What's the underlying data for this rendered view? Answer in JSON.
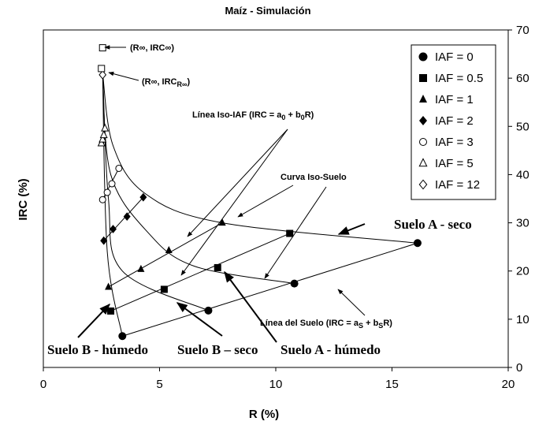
{
  "chart_data": {
    "type": "scatter",
    "title": "Maíz - Simulación",
    "xlabel": "R (%)",
    "ylabel": "IRC (%)",
    "xlim": [
      0,
      20
    ],
    "ylim": [
      0,
      70
    ],
    "x_ticks": [
      "0",
      "5",
      "10",
      "15",
      "20"
    ],
    "y_ticks": [
      "0",
      "10",
      "20",
      "30",
      "40",
      "50",
      "60",
      "70"
    ],
    "grid": false,
    "legend_position": "top-right",
    "series": [
      {
        "name": "IAF = 0",
        "marker": "filled-circle",
        "points": [
          [
            3.4,
            6.5
          ],
          [
            7.1,
            11.8
          ],
          [
            10.8,
            17.4
          ],
          [
            16.1,
            25.8
          ]
        ]
      },
      {
        "name": "IAF = 0.5",
        "marker": "filled-square",
        "points": [
          [
            2.9,
            11.7
          ],
          [
            5.2,
            16.2
          ],
          [
            7.5,
            20.7
          ],
          [
            10.6,
            27.8
          ]
        ]
      },
      {
        "name": "IAF = 1",
        "marker": "filled-triangle",
        "points": [
          [
            2.8,
            16.7
          ],
          [
            4.2,
            20.4
          ],
          [
            5.4,
            24.3
          ],
          [
            7.7,
            30.0
          ]
        ]
      },
      {
        "name": "IAF = 2",
        "marker": "filled-diamond",
        "points": [
          [
            2.6,
            26.3
          ],
          [
            3.0,
            28.7
          ],
          [
            3.6,
            31.3
          ],
          [
            4.3,
            35.3
          ]
        ]
      },
      {
        "name": "IAF = 3",
        "marker": "open-circle",
        "points": [
          [
            2.55,
            34.8
          ],
          [
            2.75,
            36.3
          ],
          [
            2.95,
            38.1
          ],
          [
            3.25,
            41.3
          ]
        ]
      },
      {
        "name": "IAF = 5",
        "marker": "open-triangle",
        "points": [
          [
            2.5,
            46.5
          ],
          [
            2.55,
            47.3
          ],
          [
            2.6,
            48.2
          ],
          [
            2.65,
            49.6
          ]
        ]
      },
      {
        "name": "IAF = 12",
        "marker": "open-diamond",
        "points": [
          [
            2.55,
            60.7
          ]
        ]
      }
    ],
    "extra_points": [
      {
        "marker": "open-square",
        "points": [
          [
            2.55,
            66.3
          ],
          [
            2.5,
            62.0
          ]
        ]
      }
    ],
    "curves": [
      {
        "points": [
          [
            2.55,
            61
          ],
          [
            2.75,
            24
          ],
          [
            3.4,
            6.5
          ]
        ]
      },
      {
        "points": [
          [
            2.55,
            61
          ],
          [
            2.8,
            35
          ],
          [
            3.4,
            20
          ],
          [
            7.1,
            11.8
          ]
        ]
      },
      {
        "points": [
          [
            2.55,
            61
          ],
          [
            2.9,
            40
          ],
          [
            4.5,
            28
          ],
          [
            6.5,
            21
          ],
          [
            10.8,
            17.4
          ]
        ]
      },
      {
        "points": [
          [
            2.55,
            61
          ],
          [
            3.0,
            46
          ],
          [
            4.4,
            36
          ],
          [
            7.7,
            30
          ],
          [
            16.1,
            25.8
          ]
        ]
      },
      {
        "points": [
          [
            3.4,
            6.5
          ],
          [
            16.1,
            25.8
          ]
        ]
      },
      {
        "points": [
          [
            2.9,
            11.7
          ],
          [
            10.6,
            27.8
          ]
        ]
      },
      {
        "points": [
          [
            2.8,
            16.7
          ],
          [
            7.7,
            30.0
          ]
        ]
      },
      {
        "points": [
          [
            2.6,
            26.3
          ],
          [
            4.3,
            35.3
          ]
        ]
      },
      {
        "points": [
          [
            2.55,
            34.8
          ],
          [
            3.25,
            41.3
          ]
        ]
      }
    ],
    "annotations": {
      "r_inf": "(R∞, IRC∞)",
      "r_inf_r_main": "(R∞, IRC",
      "r_inf_r_sub": "R∞",
      "r_inf_r_close": ")",
      "iso_iaf_a": "Línea Iso-IAF (IRC = a",
      "iso_iaf_sub0": "0",
      "iso_iaf_b": " + b",
      "iso_iaf_c": "R)",
      "iso_suelo": "Curva Iso-Suelo",
      "linea_suelo_a": "Línea del Suelo (IRC = a",
      "linea_suelo_subs": "S",
      "linea_suelo_b": " + b",
      "linea_suelo_c": "R)",
      "suelo_a_seco": "Suelo A - seco",
      "suelo_b_humedo": "Suelo B - húmedo",
      "suelo_b_seco": "Suelo B – seco",
      "suelo_a_humedo": "Suelo A - húmedo"
    }
  }
}
